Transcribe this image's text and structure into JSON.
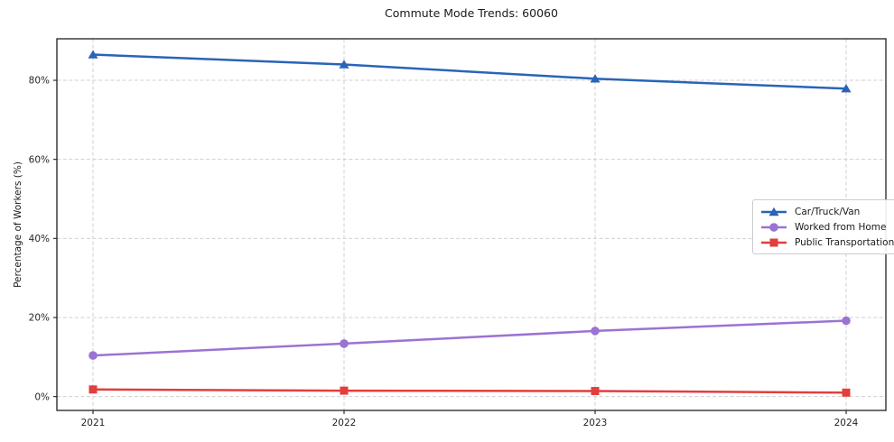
{
  "page": {
    "title": "Commute Mode Trends: 60060"
  },
  "colors": {
    "background": "#ffffff",
    "axis_frame": "#1f1f1f",
    "grid": "#cfcfcf",
    "text": "#262626",
    "car_truck_van": "#2a64b8",
    "worked_from_home": "#9b73d2",
    "public_transportation": "#e23e3e"
  },
  "chart_data": {
    "type": "line",
    "title": "Commute Mode Trends: 60060",
    "xlabel": "",
    "ylabel": "Percentage of Workers (%)",
    "categories": [
      "2021",
      "2022",
      "2023",
      "2024"
    ],
    "series": [
      {
        "name": "Car/Truck/Van",
        "color": "#2a64b8",
        "marker": "triangle-up",
        "values": [
          86.5,
          84.0,
          80.4,
          77.9
        ]
      },
      {
        "name": "Worked from Home",
        "color": "#9b73d2",
        "marker": "circle",
        "values": [
          10.4,
          13.4,
          16.6,
          19.2
        ]
      },
      {
        "name": "Public Transportation",
        "color": "#e23e3e",
        "marker": "square",
        "values": [
          1.8,
          1.5,
          1.4,
          1.0
        ]
      }
    ],
    "yticks": {
      "values": [
        0,
        20,
        40,
        60,
        80
      ],
      "labels": [
        "0%",
        "20%",
        "40%",
        "60%",
        "80%"
      ]
    },
    "ylim": [
      -3.5,
      90.5
    ],
    "grid": true,
    "grid_style": "dashed",
    "legend_position": "center-right"
  }
}
